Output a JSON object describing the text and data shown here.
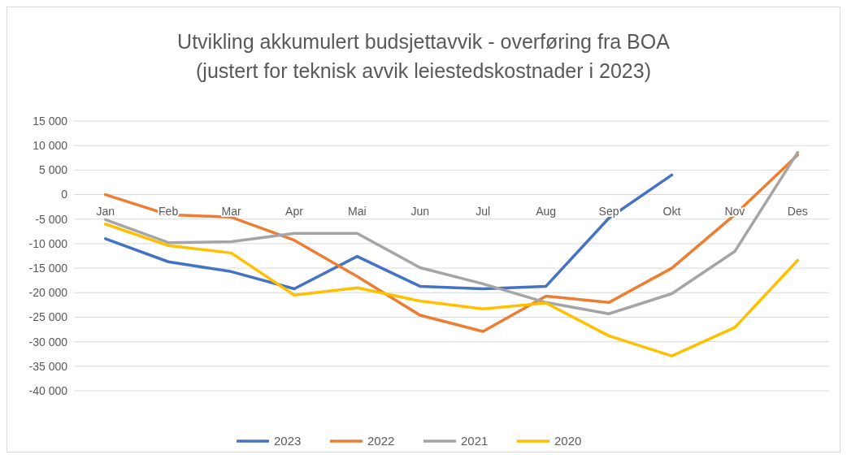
{
  "chart_data": {
    "type": "line",
    "title": "Utvikling akkumulert budsjettavvik - overføring fra BOA\n(justert for teknisk avvik leiestedskostnader i 2023)",
    "categories": [
      "Jan",
      "Feb",
      "Mar",
      "Apr",
      "Mai",
      "Jun",
      "Jul",
      "Aug",
      "Sep",
      "Okt",
      "Nov",
      "Des"
    ],
    "series": [
      {
        "name": "2023",
        "color": "#4472c4",
        "values": [
          -9000,
          -13700,
          -15700,
          -19200,
          -12600,
          -18700,
          -19200,
          -18700,
          -4800,
          4000,
          null,
          null
        ]
      },
      {
        "name": "2022",
        "color": "#ed7d31",
        "values": [
          0,
          -4100,
          -4600,
          -9300,
          -16700,
          -24600,
          -27900,
          -20700,
          -22000,
          -15000,
          -4100,
          8100
        ]
      },
      {
        "name": "2021",
        "color": "#a5a5a5",
        "values": [
          -5100,
          -9800,
          -9600,
          -7900,
          -7900,
          -14900,
          -18200,
          -22000,
          -24300,
          -20200,
          -11600,
          8600
        ]
      },
      {
        "name": "2020",
        "color": "#ffc000",
        "values": [
          -6000,
          -10400,
          -11900,
          -20500,
          -19000,
          -21700,
          -23300,
          -22100,
          -28800,
          -32900,
          -27100,
          -13400
        ]
      }
    ],
    "ylim": [
      -40000,
      15000
    ],
    "yticks": [
      {
        "value": -40000,
        "label": "-40 000"
      },
      {
        "value": -35000,
        "label": "-35 000"
      },
      {
        "value": -30000,
        "label": "-30 000"
      },
      {
        "value": -25000,
        "label": "-25 000"
      },
      {
        "value": -20000,
        "label": "-20 000"
      },
      {
        "value": -15000,
        "label": "-15 000"
      },
      {
        "value": -10000,
        "label": "-10 000"
      },
      {
        "value": -5000,
        "label": "-5 000"
      },
      {
        "value": 0,
        "label": "0"
      },
      {
        "value": 5000,
        "label": "5 000"
      },
      {
        "value": 10000,
        "label": "10 000"
      },
      {
        "value": 15000,
        "label": "15 000"
      }
    ],
    "grid": "y",
    "legend": "bottom",
    "marker": "none",
    "line_style": "solid"
  }
}
